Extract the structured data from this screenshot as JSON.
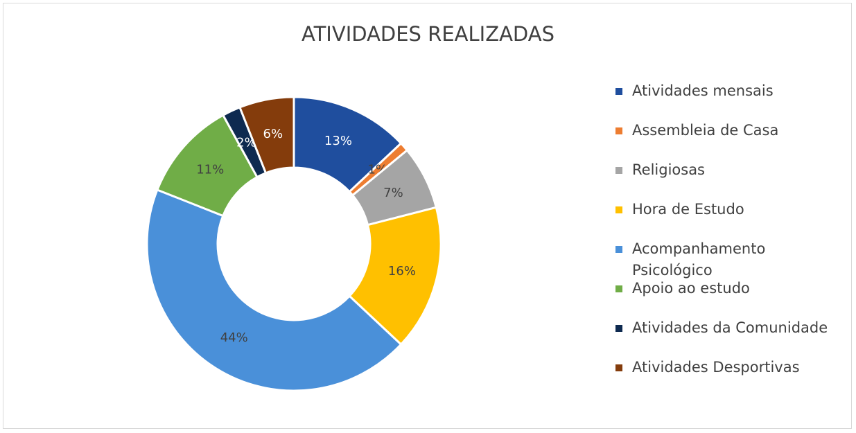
{
  "chart_data": {
    "type": "donut",
    "title": "ATIVIDADES REALIZADAS",
    "categories": [
      "Atividades mensais",
      "Assembleia de Casa",
      "Religiosas",
      "Hora de Estudo",
      "Acompanhamento Psicológico",
      "Apoio ao estudo",
      "Atividades da Comunidade",
      "Atividades Desportivas"
    ],
    "values": [
      13,
      1,
      7,
      16,
      44,
      11,
      2,
      6
    ],
    "value_labels": [
      "13%",
      "1%",
      "7%",
      "16%",
      "44%",
      "11%",
      "2%",
      "6%"
    ],
    "colors": [
      "#1f4e9e",
      "#ed7d31",
      "#a5a5a5",
      "#ffc000",
      "#4a90d9",
      "#70ad47",
      "#0e2a50",
      "#843c0c"
    ],
    "legend": "right"
  }
}
